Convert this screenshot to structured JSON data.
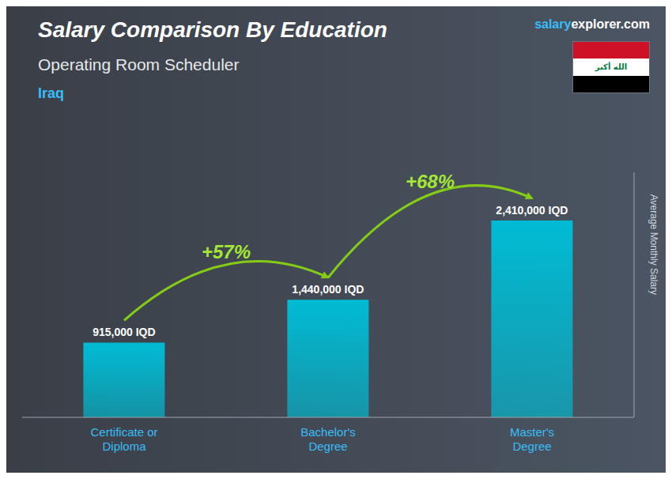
{
  "chart_data": {
    "type": "bar",
    "title": "Salary Comparison By Education",
    "subtitle": "Operating Room Scheduler",
    "country": "Iraq",
    "ylabel": "Average Monthly Salary",
    "categories": [
      "Certificate or\nDiploma",
      "Bachelor's\nDegree",
      "Master's\nDegree"
    ],
    "values": [
      915000,
      1440000,
      2410000
    ],
    "value_labels": [
      "915,000 IQD",
      "1,440,000 IQD",
      "2,410,000 IQD"
    ],
    "data_labels": true,
    "annotations": [
      "+57%",
      "+68%"
    ],
    "annotation_color": "#a3e635",
    "arrow_color": "#84cc16",
    "color": "#00bcd4",
    "ylim": [
      0,
      3000000
    ],
    "tick_labels": false,
    "grid": false,
    "logo": [
      "salary",
      "explorer",
      ".com"
    ],
    "logo_colors": [
      "#38bdf8",
      "#ffffff",
      "#ffffff"
    ],
    "flag": {
      "text": "الله أكبر",
      "colors": [
        "#ce1126",
        "#ffffff",
        "#000000"
      ],
      "text_color": "#007a3d"
    }
  }
}
